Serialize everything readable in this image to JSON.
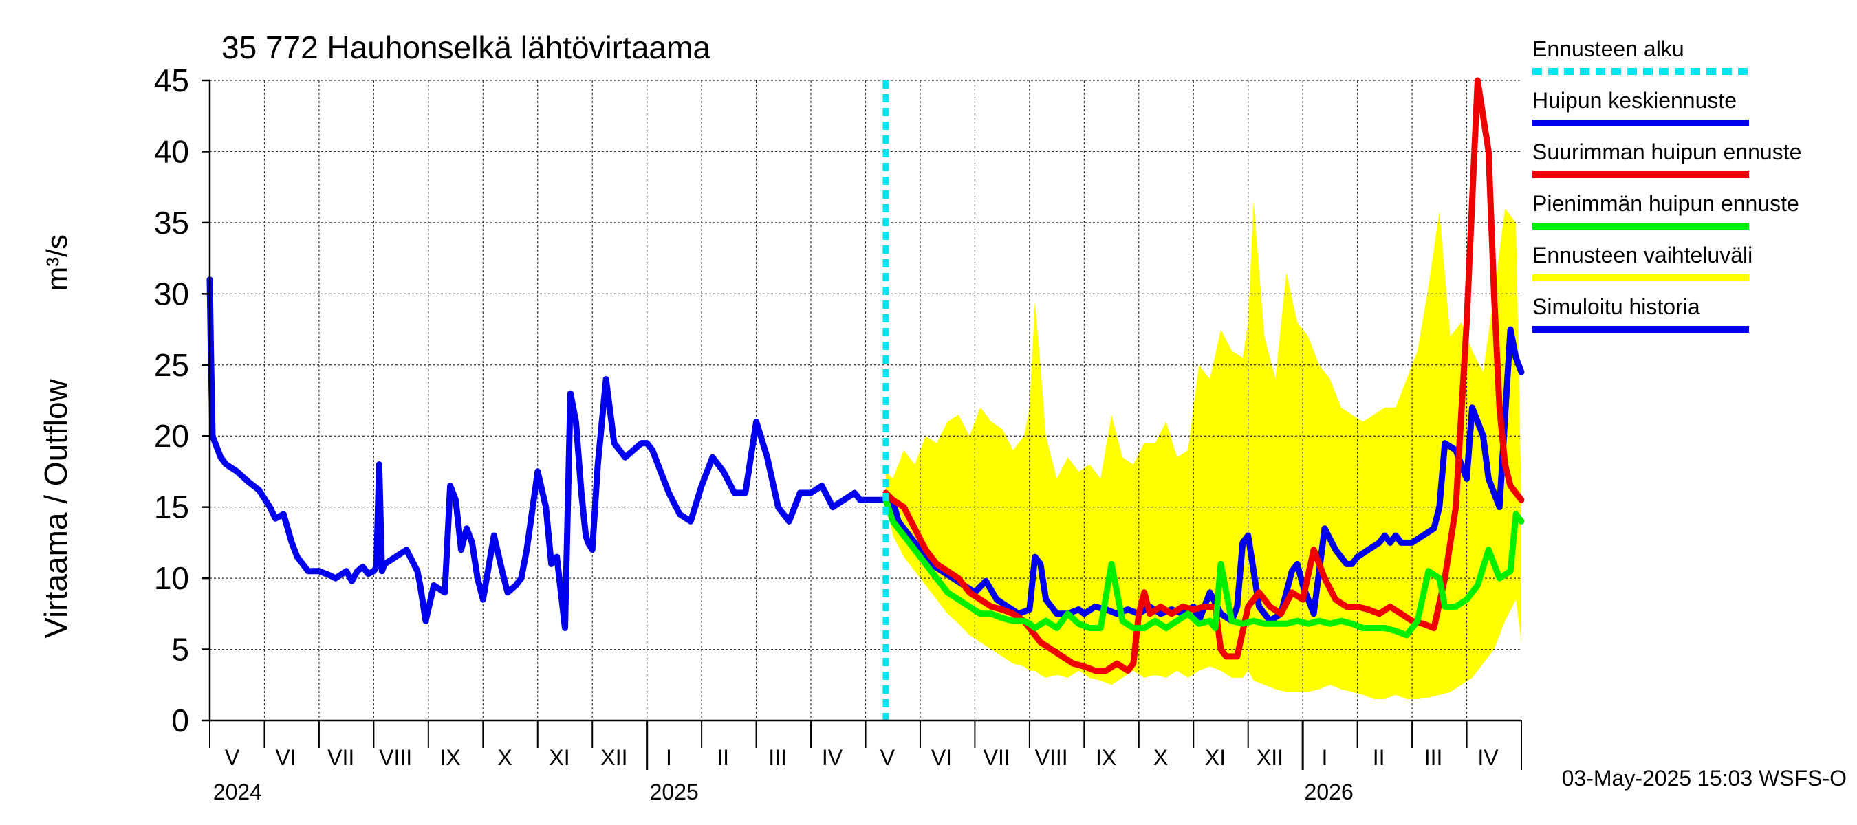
{
  "chart_data": {
    "type": "line",
    "title": "35 772 Hauhonselkä lähtövirtaama",
    "ylabel": "Virtaama / Outflow",
    "yunit": "m³/s",
    "ylim": [
      0,
      45
    ],
    "yticks": [
      0,
      5,
      10,
      15,
      20,
      25,
      30,
      35,
      40,
      45
    ],
    "xlim": [
      0,
      24
    ],
    "x_unit": "months since 2024-04-20",
    "grid": true,
    "forecast_start": 12.37,
    "month_labels": [
      {
        "x": 0.41,
        "label": "V"
      },
      {
        "x": 1.39,
        "label": "VI"
      },
      {
        "x": 2.4,
        "label": "VII"
      },
      {
        "x": 3.4,
        "label": "VIII"
      },
      {
        "x": 4.4,
        "label": "IX"
      },
      {
        "x": 5.4,
        "label": "X"
      },
      {
        "x": 6.4,
        "label": "XI"
      },
      {
        "x": 7.4,
        "label": "XII"
      },
      {
        "x": 8.4,
        "label": "I"
      },
      {
        "x": 9.39,
        "label": "II"
      },
      {
        "x": 10.39,
        "label": "III"
      },
      {
        "x": 11.39,
        "label": "IV"
      },
      {
        "x": 12.4,
        "label": "V"
      },
      {
        "x": 13.39,
        "label": "VI"
      },
      {
        "x": 14.4,
        "label": "VII"
      },
      {
        "x": 15.4,
        "label": "VIII"
      },
      {
        "x": 16.4,
        "label": "IX"
      },
      {
        "x": 17.4,
        "label": "X"
      },
      {
        "x": 18.4,
        "label": "XI"
      },
      {
        "x": 19.4,
        "label": "XII"
      },
      {
        "x": 20.4,
        "label": "I"
      },
      {
        "x": 21.39,
        "label": "II"
      },
      {
        "x": 22.39,
        "label": "III"
      },
      {
        "x": 23.39,
        "label": "IV"
      }
    ],
    "month_boundaries": [
      0.0,
      1.0,
      2.0,
      3.0,
      4.0,
      5.0,
      6.0,
      7.0,
      8.0,
      9.0,
      10.0,
      11.0,
      12.0,
      13.0,
      14.0,
      15.0,
      16.0,
      17.0,
      18.0,
      19.0,
      20.0,
      21.0,
      22.0,
      23.0,
      24.0
    ],
    "year_labels": [
      {
        "x": 0.06,
        "label": "2024"
      },
      {
        "x": 8.05,
        "label": "2025"
      },
      {
        "x": 20.03,
        "label": "2026"
      }
    ],
    "year_boundaries": [
      8.0,
      20.0
    ],
    "timestamp": "03-May-2025 15:03 WSFS-O",
    "legend": [
      {
        "label": "Ennusteen alku",
        "color": "#00e5ee",
        "dashed": true
      },
      {
        "label": "Huipun keskiennuste",
        "color": "#0000ee",
        "dashed": false
      },
      {
        "label": "Suurimman huipun ennuste",
        "color": "#ee0000",
        "dashed": false
      },
      {
        "label": "Pienimmän huipun ennuste",
        "color": "#00ee00",
        "dashed": false
      },
      {
        "label": "Ennusteen vaihteluväli",
        "color": "#ffff00",
        "dashed": false
      },
      {
        "label": "Simuloitu historia",
        "color": "#0000ee",
        "dashed": false
      }
    ],
    "series": [
      {
        "name": "Ennusteen vaihteluväli",
        "kind": "band",
        "color": "#ffff00",
        "x": [
          12.37,
          12.5,
          12.7,
          12.9,
          13.1,
          13.3,
          13.5,
          13.7,
          13.9,
          14.1,
          14.3,
          14.5,
          14.7,
          14.9,
          15.0,
          15.1,
          15.2,
          15.3,
          15.5,
          15.7,
          15.9,
          16.1,
          16.3,
          16.5,
          16.7,
          16.9,
          17.1,
          17.3,
          17.5,
          17.7,
          17.9,
          18.1,
          18.3,
          18.5,
          18.7,
          18.9,
          19.0,
          19.1,
          19.3,
          19.5,
          19.7,
          19.9,
          20.1,
          20.3,
          20.5,
          20.7,
          20.9,
          21.1,
          21.3,
          21.5,
          21.7,
          21.9,
          22.1,
          22.3,
          22.5,
          22.7,
          22.9,
          23.1,
          23.3,
          23.5,
          23.7,
          23.9,
          24.0
        ],
        "upper": [
          17.5,
          17.0,
          19.0,
          18.0,
          20.0,
          19.5,
          21.0,
          21.5,
          20.0,
          22.0,
          21.0,
          20.5,
          19.0,
          20.0,
          22.0,
          29.5,
          25.0,
          20.0,
          17.0,
          18.5,
          17.5,
          18.0,
          17.0,
          21.5,
          18.5,
          18.0,
          19.5,
          19.5,
          21.0,
          18.5,
          19.0,
          25.0,
          24.0,
          27.5,
          26.0,
          25.5,
          28.0,
          36.5,
          27.0,
          24.0,
          31.5,
          28.0,
          27.0,
          25.0,
          24.0,
          22.0,
          21.5,
          21.0,
          21.5,
          22.0,
          22.0,
          24.0,
          26.0,
          30.5,
          35.8,
          27.0,
          28.0,
          26.0,
          24.5,
          30.0,
          36.0,
          35.0,
          15.5
        ],
        "lower": [
          15.5,
          13.0,
          11.5,
          10.5,
          9.5,
          8.5,
          7.5,
          6.8,
          6.0,
          5.5,
          5.0,
          4.5,
          4.0,
          3.8,
          3.5,
          3.5,
          3.2,
          3.0,
          3.2,
          3.0,
          3.5,
          3.0,
          2.8,
          2.5,
          3.0,
          3.5,
          3.0,
          3.2,
          3.0,
          3.5,
          3.0,
          3.5,
          3.8,
          3.5,
          3.0,
          3.0,
          3.5,
          2.8,
          2.5,
          2.2,
          2.0,
          2.0,
          2.0,
          2.2,
          2.5,
          2.2,
          2.0,
          1.8,
          1.5,
          1.5,
          1.8,
          1.5,
          1.5,
          1.6,
          1.8,
          2.0,
          2.5,
          3.0,
          4.0,
          5.0,
          7.0,
          8.5,
          5.5
        ]
      },
      {
        "name": "Simuloitu historia",
        "color": "#0000ee",
        "x": [
          0.0,
          0.02,
          0.05,
          0.1,
          0.2,
          0.3,
          0.5,
          0.7,
          0.9,
          1.1,
          1.2,
          1.35,
          1.5,
          1.6,
          1.7,
          1.8,
          2.0,
          2.2,
          2.3,
          2.5,
          2.6,
          2.7,
          2.8,
          2.9,
          3.0,
          3.05,
          3.1,
          3.15,
          3.2,
          3.4,
          3.6,
          3.8,
          3.85,
          3.95,
          4.1,
          4.3,
          4.4,
          4.5,
          4.6,
          4.7,
          4.8,
          4.9,
          5.0,
          5.2,
          5.35,
          5.45,
          5.6,
          5.7,
          5.8,
          6.0,
          6.15,
          6.25,
          6.35,
          6.5,
          6.6,
          6.7,
          6.8,
          6.88,
          6.92,
          7.0,
          7.1,
          7.25,
          7.4,
          7.6,
          7.75,
          7.9,
          8.0,
          8.1,
          8.3,
          8.4,
          8.6,
          8.8,
          9.0,
          9.2,
          9.4,
          9.6,
          9.8,
          10.0,
          10.2,
          10.4,
          10.6,
          10.8,
          11.0,
          11.2,
          11.4,
          11.6,
          11.8,
          11.9,
          12.0,
          12.2,
          12.37
        ],
        "y": [
          31.0,
          26.0,
          20.0,
          19.5,
          18.5,
          18.0,
          17.5,
          16.8,
          16.2,
          15.0,
          14.2,
          14.5,
          12.5,
          11.5,
          11.0,
          10.5,
          10.5,
          10.2,
          10.0,
          10.5,
          9.8,
          10.5,
          10.8,
          10.3,
          10.5,
          10.8,
          18.0,
          10.5,
          11.0,
          11.5,
          12.0,
          10.5,
          9.5,
          7.0,
          9.5,
          9.0,
          16.5,
          15.5,
          12.0,
          13.5,
          12.5,
          10.0,
          8.5,
          13.0,
          10.5,
          9.0,
          9.5,
          10.0,
          12.0,
          17.5,
          15.0,
          11.0,
          11.5,
          6.5,
          23.0,
          21.0,
          16.0,
          13.0,
          12.5,
          12.0,
          18.0,
          24.0,
          19.5,
          18.5,
          19.0,
          19.5,
          19.5,
          19.0,
          17.0,
          16.0,
          14.5,
          14.0,
          16.5,
          18.5,
          17.5,
          16.0,
          16.0,
          21.0,
          18.5,
          15.0,
          14.0,
          16.0,
          16.0,
          16.5,
          15.0,
          15.5,
          16.0,
          15.5,
          15.5,
          15.5,
          15.5
        ]
      },
      {
        "name": "Huipun keskiennuste",
        "color": "#0000ee",
        "x": [
          12.37,
          12.5,
          12.6,
          12.8,
          13.0,
          13.2,
          13.4,
          13.6,
          13.8,
          14.0,
          14.2,
          14.4,
          14.6,
          14.8,
          15.0,
          15.1,
          15.2,
          15.3,
          15.5,
          15.7,
          15.9,
          16.0,
          16.2,
          16.4,
          16.6,
          16.8,
          17.0,
          17.2,
          17.4,
          17.6,
          17.8,
          18.0,
          18.1,
          18.3,
          18.5,
          18.7,
          18.8,
          18.9,
          19.0,
          19.1,
          19.2,
          19.3,
          19.4,
          19.6,
          19.8,
          19.9,
          20.0,
          20.2,
          20.4,
          20.6,
          20.8,
          20.9,
          21.0,
          21.2,
          21.4,
          21.5,
          21.6,
          21.7,
          21.8,
          22.0,
          22.2,
          22.4,
          22.5,
          22.6,
          22.8,
          23.0,
          23.1,
          23.3,
          23.4,
          23.6,
          23.8,
          23.9,
          24.0
        ],
        "y": [
          15.5,
          15.5,
          14.0,
          13.0,
          12.0,
          11.0,
          10.5,
          10.0,
          9.5,
          9.0,
          9.8,
          8.5,
          8.0,
          7.5,
          7.8,
          11.5,
          11.0,
          8.5,
          7.5,
          7.5,
          7.8,
          7.5,
          8.0,
          7.8,
          7.5,
          7.8,
          7.5,
          8.0,
          7.5,
          7.8,
          7.5,
          8.0,
          7.0,
          9.0,
          7.5,
          7.0,
          8.0,
          12.5,
          13.0,
          10.5,
          8.0,
          7.5,
          7.0,
          7.5,
          10.5,
          11.0,
          9.5,
          7.5,
          13.5,
          12.0,
          11.0,
          11.0,
          11.5,
          12.0,
          12.5,
          13.0,
          12.5,
          13.0,
          12.5,
          12.5,
          13.0,
          13.5,
          15.0,
          19.5,
          19.0,
          17.0,
          22.0,
          20.0,
          17.0,
          15.0,
          27.5,
          25.5,
          24.5
        ]
      },
      {
        "name": "Suurimman huipun ennuste",
        "color": "#ee0000",
        "x": [
          12.37,
          12.5,
          12.7,
          12.9,
          13.1,
          13.3,
          13.5,
          13.7,
          13.9,
          14.1,
          14.3,
          14.5,
          14.7,
          14.9,
          15.0,
          15.2,
          15.4,
          15.6,
          15.8,
          16.0,
          16.2,
          16.4,
          16.6,
          16.8,
          16.9,
          17.0,
          17.1,
          17.2,
          17.4,
          17.6,
          17.8,
          18.0,
          18.2,
          18.4,
          18.5,
          18.6,
          18.8,
          19.0,
          19.2,
          19.4,
          19.6,
          19.8,
          20.0,
          20.2,
          20.4,
          20.6,
          20.8,
          21.0,
          21.2,
          21.4,
          21.6,
          21.8,
          22.0,
          22.2,
          22.4,
          22.6,
          22.8,
          23.0,
          23.2,
          23.4,
          23.5,
          23.6,
          23.7,
          23.8,
          23.9,
          24.0
        ],
        "y": [
          16.0,
          15.5,
          15.0,
          13.5,
          12.0,
          11.0,
          10.5,
          10.0,
          9.0,
          8.5,
          8.0,
          7.8,
          7.5,
          7.0,
          6.5,
          5.5,
          5.0,
          4.5,
          4.0,
          3.8,
          3.5,
          3.5,
          4.0,
          3.5,
          4.0,
          7.5,
          9.0,
          7.5,
          8.0,
          7.5,
          8.0,
          7.8,
          8.0,
          8.0,
          5.0,
          4.5,
          4.5,
          8.0,
          9.0,
          8.0,
          7.5,
          9.0,
          8.5,
          12.0,
          10.0,
          8.5,
          8.0,
          8.0,
          7.8,
          7.5,
          8.0,
          7.5,
          7.0,
          6.8,
          6.5,
          10.0,
          15.0,
          28.0,
          45.0,
          40.0,
          30.0,
          22.0,
          18.0,
          16.5,
          16.0,
          15.5
        ]
      },
      {
        "name": "Pienimmän huipun ennuste",
        "color": "#00ee00",
        "x": [
          12.37,
          12.5,
          12.7,
          12.9,
          13.1,
          13.3,
          13.5,
          13.7,
          13.9,
          14.1,
          14.3,
          14.5,
          14.7,
          14.9,
          15.0,
          15.1,
          15.3,
          15.5,
          15.7,
          15.9,
          16.1,
          16.3,
          16.5,
          16.7,
          16.9,
          17.1,
          17.3,
          17.5,
          17.7,
          17.9,
          18.1,
          18.3,
          18.4,
          18.5,
          18.7,
          18.9,
          19.1,
          19.3,
          19.5,
          19.7,
          19.9,
          20.1,
          20.3,
          20.5,
          20.7,
          20.9,
          21.1,
          21.3,
          21.5,
          21.7,
          21.9,
          22.1,
          22.3,
          22.5,
          22.6,
          22.8,
          23.0,
          23.2,
          23.4,
          23.6,
          23.8,
          23.9,
          24.0
        ],
        "y": [
          15.5,
          14.0,
          13.0,
          12.0,
          11.0,
          10.0,
          9.0,
          8.5,
          8.0,
          7.5,
          7.5,
          7.2,
          7.0,
          7.0,
          6.8,
          6.5,
          7.0,
          6.5,
          7.5,
          6.8,
          6.5,
          6.5,
          11.0,
          7.0,
          6.5,
          6.5,
          7.0,
          6.5,
          7.0,
          7.5,
          6.8,
          7.0,
          6.5,
          11.0,
          7.0,
          6.8,
          7.0,
          6.8,
          6.8,
          6.8,
          7.0,
          6.8,
          7.0,
          6.8,
          7.0,
          6.8,
          6.5,
          6.5,
          6.5,
          6.3,
          6.0,
          7.0,
          10.5,
          10.0,
          8.0,
          8.0,
          8.5,
          9.5,
          12.0,
          10.0,
          10.5,
          14.5,
          14.0
        ]
      }
    ]
  }
}
